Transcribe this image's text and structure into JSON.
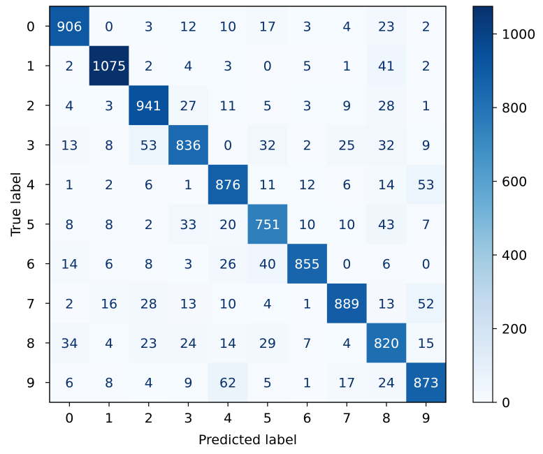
{
  "chart_data": {
    "type": "heatmap",
    "title": "",
    "xlabel": "Predicted label",
    "ylabel": "True label",
    "x_categories": [
      "0",
      "1",
      "2",
      "3",
      "4",
      "5",
      "6",
      "7",
      "8",
      "9"
    ],
    "y_categories": [
      "0",
      "1",
      "2",
      "3",
      "4",
      "5",
      "6",
      "7",
      "8",
      "9"
    ],
    "matrix": [
      [
        906,
        0,
        3,
        12,
        10,
        17,
        3,
        4,
        23,
        2
      ],
      [
        2,
        1075,
        2,
        4,
        3,
        0,
        5,
        1,
        41,
        2
      ],
      [
        4,
        3,
        941,
        27,
        11,
        5,
        3,
        9,
        28,
        1
      ],
      [
        13,
        8,
        53,
        836,
        0,
        32,
        2,
        25,
        32,
        9
      ],
      [
        1,
        2,
        6,
        1,
        876,
        11,
        12,
        6,
        14,
        53
      ],
      [
        8,
        8,
        2,
        33,
        20,
        751,
        10,
        10,
        43,
        7
      ],
      [
        14,
        6,
        8,
        3,
        26,
        40,
        855,
        0,
        6,
        0
      ],
      [
        2,
        16,
        28,
        13,
        10,
        4,
        1,
        889,
        13,
        52
      ],
      [
        34,
        4,
        23,
        24,
        14,
        29,
        7,
        4,
        820,
        15
      ],
      [
        6,
        8,
        4,
        9,
        62,
        5,
        1,
        17,
        24,
        873
      ]
    ],
    "colormap": "Blues",
    "color_range": [
      0,
      1075
    ],
    "colorbar": {
      "ticks": [
        0,
        200,
        400,
        600,
        800,
        1000
      ],
      "tick_labels": [
        "0",
        "200",
        "400",
        "600",
        "800",
        "1000"
      ]
    },
    "grid": false
  }
}
